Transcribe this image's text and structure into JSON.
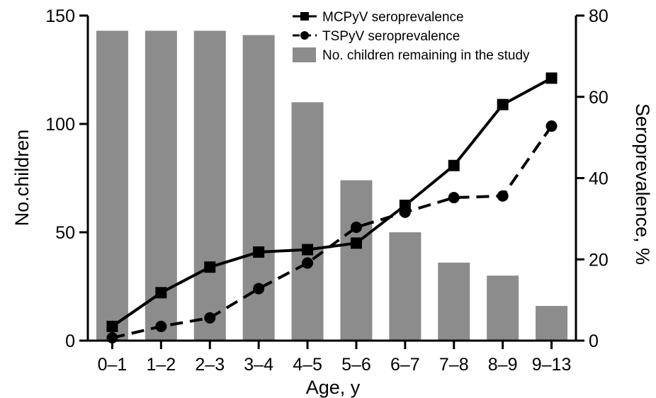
{
  "chart_data": {
    "type": "bar",
    "categories": [
      "0–1",
      "1–2",
      "2–3",
      "3–4",
      "4–5",
      "5–6",
      "6–7",
      "7–8",
      "8–9",
      "9–13"
    ],
    "xlabel": "Age, y",
    "ylabel_left": "No.children",
    "ylabel_right": "Seroprevalence, %",
    "ylim_left": [
      0,
      150
    ],
    "ylim_right": [
      0,
      80
    ],
    "yticks_left": [
      "0",
      "50",
      "100",
      "150"
    ],
    "yticks_right": [
      "0",
      "20",
      "40",
      "60",
      "80"
    ],
    "series": [
      {
        "name": "No. children remaining in the study",
        "kind": "bar",
        "axis": "left",
        "color": "#8c8c8c",
        "values": [
          143,
          143,
          143,
          141,
          110,
          74,
          50,
          36,
          30,
          16
        ]
      },
      {
        "name": "MCPyV seroprevalence",
        "kind": "line",
        "axis": "right",
        "style": "solid",
        "marker": "square",
        "color": "#000000",
        "values": [
          3.5,
          11.8,
          18.1,
          21.8,
          22.4,
          24.0,
          33.3,
          43.1,
          58.1,
          64.6
        ]
      },
      {
        "name": "TSPyV seroprevalence",
        "kind": "line",
        "axis": "right",
        "style": "dashed",
        "marker": "circle",
        "color": "#000000",
        "values": [
          0.7,
          3.5,
          5.6,
          12.8,
          19.1,
          27.9,
          31.6,
          35.2,
          35.6,
          52.8
        ]
      }
    ],
    "legend_position": "top-right",
    "grid": false
  }
}
